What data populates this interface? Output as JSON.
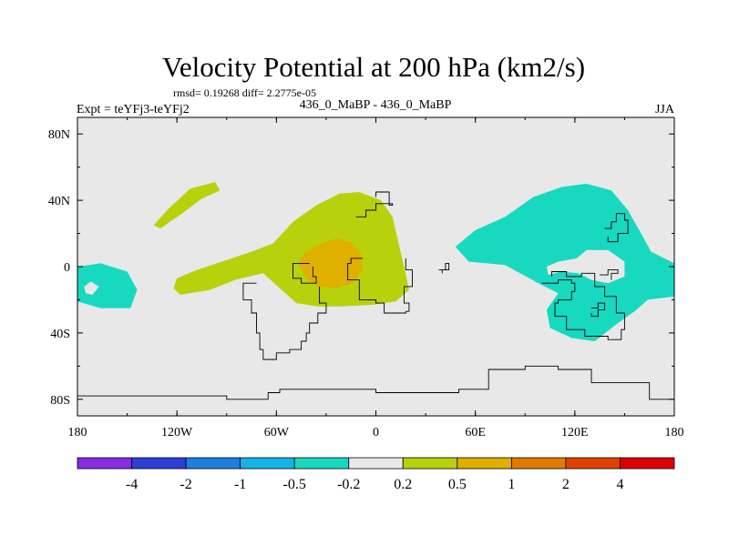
{
  "chart_data": {
    "type": "contour-map",
    "title": "Velocity Potential at 200 hPa (km2/s)",
    "stats_line": "rmsd= 0.19268 diff= 2.2775e-05",
    "left_header": "Expt = teYFj3-teYFj2",
    "center_header": "436_0_MaBP - 436_0_MaBP",
    "right_header": "JJA",
    "xlim": [
      -180,
      180
    ],
    "ylim": [
      -90,
      90
    ],
    "x_ticks": [
      {
        "value": -180,
        "label": "180"
      },
      {
        "value": -120,
        "label": "120W"
      },
      {
        "value": -60,
        "label": "60W"
      },
      {
        "value": 0,
        "label": "0"
      },
      {
        "value": 60,
        "label": "60E"
      },
      {
        "value": 120,
        "label": "120E"
      },
      {
        "value": 180,
        "label": "180"
      }
    ],
    "y_ticks": [
      {
        "value": 80,
        "label": "80N"
      },
      {
        "value": 40,
        "label": "40N"
      },
      {
        "value": 0,
        "label": "0"
      },
      {
        "value": -40,
        "label": "40S"
      },
      {
        "value": -80,
        "label": "80S"
      }
    ],
    "colorbar": {
      "colors": [
        "#8a2be2",
        "#2d3fd6",
        "#1e7fe0",
        "#15b4e6",
        "#17d9c0",
        "#e8e8e8",
        "#b8d10b",
        "#e0b000",
        "#e07b00",
        "#e04000",
        "#e00000"
      ],
      "labels": [
        "-4",
        "-2",
        "-1",
        "-0.5",
        "-0.2",
        "0.2",
        "0.5",
        "1",
        "2",
        "4"
      ]
    },
    "regions": [
      {
        "name": "positive-region-atlantic",
        "level": "0.2 to 0.5",
        "color": "#b8d10b",
        "points": [
          [
            -122,
            -13
          ],
          [
            -118,
            -17
          ],
          [
            -100,
            -14
          ],
          [
            -85,
            -8
          ],
          [
            -68,
            -4
          ],
          [
            -48,
            -22
          ],
          [
            -35,
            -24
          ],
          [
            -20,
            -24
          ],
          [
            -2,
            -23
          ],
          [
            12,
            -21
          ],
          [
            20,
            -14
          ],
          [
            17,
            0
          ],
          [
            13,
            17
          ],
          [
            10,
            30
          ],
          [
            3,
            40
          ],
          [
            -10,
            45
          ],
          [
            -22,
            44
          ],
          [
            -36,
            37
          ],
          [
            -50,
            27
          ],
          [
            -62,
            14
          ],
          [
            -75,
            9
          ],
          [
            -90,
            4
          ],
          [
            -108,
            -2
          ],
          [
            -120,
            -7
          ]
        ]
      },
      {
        "name": "positive-region-south-america",
        "level": "0.5 to 1",
        "color": "#e0b000",
        "points": [
          [
            -47,
            2
          ],
          [
            -42,
            -7
          ],
          [
            -35,
            -12
          ],
          [
            -24,
            -13
          ],
          [
            -14,
            -10
          ],
          [
            -8,
            -2
          ],
          [
            -9,
            8
          ],
          [
            -15,
            15
          ],
          [
            -24,
            17
          ],
          [
            -35,
            13
          ],
          [
            -43,
            8
          ]
        ]
      },
      {
        "name": "positive-region-north-pacific",
        "level": "0.2 to 0.5",
        "color": "#b8d10b",
        "points": [
          [
            -134,
            25
          ],
          [
            -125,
            35
          ],
          [
            -112,
            47
          ],
          [
            -97,
            51
          ],
          [
            -94,
            46
          ],
          [
            -105,
            41
          ],
          [
            -117,
            32
          ],
          [
            -130,
            23
          ]
        ]
      },
      {
        "name": "negative-region-indian-pacific",
        "level": "-0.5 to -0.2",
        "color": "#17d9c0",
        "points": [
          [
            48,
            12
          ],
          [
            60,
            22
          ],
          [
            78,
            30
          ],
          [
            95,
            42
          ],
          [
            112,
            48
          ],
          [
            127,
            50
          ],
          [
            142,
            46
          ],
          [
            152,
            34
          ],
          [
            160,
            20
          ],
          [
            166,
            9
          ],
          [
            180,
            2
          ],
          [
            180,
            -18
          ],
          [
            164,
            -20
          ],
          [
            156,
            -27
          ],
          [
            146,
            -34
          ],
          [
            132,
            -45
          ],
          [
            118,
            -43
          ],
          [
            105,
            -37
          ],
          [
            103,
            -26
          ],
          [
            110,
            -16
          ],
          [
            98,
            -10
          ],
          [
            78,
            1
          ],
          [
            56,
            3
          ]
        ]
      },
      {
        "name": "negative-region-dateline",
        "level": "-0.5 to -0.2",
        "color": "#17d9c0",
        "points": [
          [
            -180,
            0
          ],
          [
            -166,
            2
          ],
          [
            -150,
            -3
          ],
          [
            -144,
            -14
          ],
          [
            -148,
            -25
          ],
          [
            -166,
            -25
          ],
          [
            -180,
            -21
          ]
        ]
      },
      {
        "name": "background-hole-maritime",
        "level": "-0.2 to 0.2",
        "color": "#e8e8e8",
        "points": [
          [
            121,
            5
          ],
          [
            127,
            10
          ],
          [
            140,
            10
          ],
          [
            150,
            3
          ],
          [
            150,
            -6
          ],
          [
            140,
            -10
          ],
          [
            130,
            -8
          ],
          [
            122,
            -4
          ],
          [
            112,
            -3
          ],
          [
            104,
            -5
          ],
          [
            103,
            0
          ],
          [
            110,
            3
          ]
        ]
      },
      {
        "name": "background-hole-east-pacific",
        "level": "-0.2 to 0.2",
        "color": "#e8e8e8",
        "points": [
          [
            -176,
            -12
          ],
          [
            -172,
            -9
          ],
          [
            -167,
            -12
          ],
          [
            -171,
            -17
          ],
          [
            -175,
            -16
          ]
        ]
      }
    ],
    "coastlines": [
      [
        [
          -180,
          -78
        ],
        [
          -90,
          -80
        ],
        [
          -70,
          -80
        ],
        [
          -65,
          -76
        ],
        [
          -58,
          -74
        ],
        [
          0,
          -76
        ],
        [
          50,
          -74
        ],
        [
          68,
          -62
        ],
        [
          90,
          -60
        ],
        [
          110,
          -62
        ],
        [
          130,
          -70
        ],
        [
          165,
          -80
        ],
        [
          180,
          -80
        ]
      ],
      [
        [
          -72,
          -10
        ],
        [
          -80,
          -10
        ],
        [
          -80,
          -20
        ],
        [
          -75,
          -28
        ],
        [
          -72,
          -40
        ],
        [
          -70,
          -50
        ],
        [
          -68,
          -56
        ],
        [
          -60,
          -52
        ],
        [
          -52,
          -50
        ],
        [
          -45,
          -45
        ],
        [
          -42,
          -40
        ],
        [
          -40,
          -34
        ],
        [
          -35,
          -28
        ],
        [
          -30,
          -22
        ],
        [
          -34,
          -12
        ]
      ],
      [
        [
          -40,
          2
        ],
        [
          -48,
          2
        ],
        [
          -50,
          -7
        ],
        [
          -45,
          -10
        ],
        [
          -36,
          -6
        ],
        [
          -38,
          0
        ]
      ],
      [
        [
          -8,
          5
        ],
        [
          -15,
          2
        ],
        [
          -17,
          -8
        ],
        [
          -10,
          -20
        ],
        [
          0,
          -22
        ],
        [
          5,
          -28
        ],
        [
          18,
          -27
        ],
        [
          20,
          -22
        ],
        [
          17,
          -12
        ],
        [
          22,
          -2
        ],
        [
          18,
          5
        ]
      ],
      [
        [
          -12,
          30
        ],
        [
          -6,
          34
        ],
        [
          0,
          38
        ],
        [
          10,
          37
        ],
        [
          8,
          45
        ],
        [
          0,
          42
        ]
      ],
      [
        [
          100,
          -10
        ],
        [
          110,
          -8
        ],
        [
          118,
          -10
        ],
        [
          120,
          -15
        ],
        [
          118,
          -20
        ],
        [
          110,
          -22
        ],
        [
          108,
          -30
        ],
        [
          115,
          -38
        ],
        [
          126,
          -42
        ],
        [
          140,
          -44
        ],
        [
          148,
          -38
        ],
        [
          150,
          -28
        ],
        [
          145,
          -18
        ],
        [
          138,
          -12
        ],
        [
          132,
          -4
        ],
        [
          124,
          -6
        ],
        [
          115,
          -3
        ],
        [
          106,
          -6
        ]
      ],
      [
        [
          130,
          -25
        ],
        [
          134,
          -22
        ],
        [
          138,
          -26
        ],
        [
          134,
          -30
        ],
        [
          130,
          -28
        ]
      ],
      [
        [
          138,
          23
        ],
        [
          142,
          27
        ],
        [
          145,
          32
        ],
        [
          150,
          28
        ],
        [
          152,
          20
        ],
        [
          146,
          15
        ],
        [
          140,
          18
        ]
      ],
      [
        [
          135,
          -5
        ],
        [
          140,
          -2
        ],
        [
          146,
          -4
        ],
        [
          142,
          -8
        ]
      ],
      [
        [
          38,
          -2
        ],
        [
          42,
          2
        ],
        [
          44,
          -2
        ],
        [
          40,
          -4
        ]
      ]
    ]
  }
}
